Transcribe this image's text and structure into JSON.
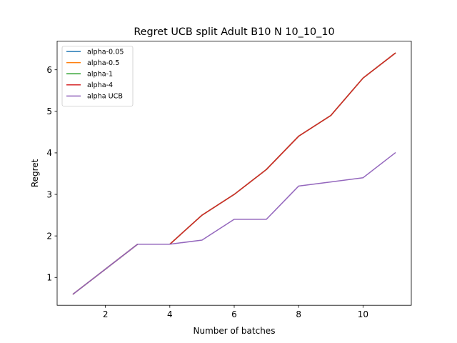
{
  "chart_data": {
    "type": "line",
    "title": "Regret UCB split Adult B10 N 10_10_10",
    "xlabel": "Number of batches",
    "ylabel": "Regret",
    "xlim": [
      0.5,
      11.5
    ],
    "ylim": [
      0.33,
      6.69
    ],
    "xticks": [
      2,
      4,
      6,
      8,
      10
    ],
    "yticks": [
      1,
      2,
      3,
      4,
      5,
      6
    ],
    "grid": false,
    "legend_position": "upper left",
    "x": [
      1,
      2,
      3,
      4,
      5,
      6,
      7,
      8,
      9,
      10,
      11
    ],
    "series": [
      {
        "name": "alpha-0.05",
        "color": "#1f77b4",
        "values": [
          0.6,
          1.2,
          1.8,
          1.8,
          2.5,
          3.0,
          3.6,
          4.4,
          4.9,
          5.8,
          6.4
        ]
      },
      {
        "name": "alpha-0.5",
        "color": "#ff7f0e",
        "values": [
          0.6,
          1.2,
          1.8,
          1.8,
          2.5,
          3.0,
          3.6,
          4.4,
          4.9,
          5.8,
          6.4
        ]
      },
      {
        "name": "alpha-1",
        "color": "#2ca02c",
        "values": [
          0.6,
          1.2,
          1.8,
          1.8,
          2.5,
          3.0,
          3.6,
          4.4,
          4.9,
          5.8,
          6.4
        ]
      },
      {
        "name": "alpha-4",
        "color": "#d62728",
        "values": [
          0.6,
          1.2,
          1.8,
          1.8,
          2.5,
          3.0,
          3.6,
          4.4,
          4.9,
          5.8,
          6.4
        ]
      },
      {
        "name": "alpha UCB",
        "color": "#9467bd",
        "values": [
          0.6,
          1.2,
          1.8,
          1.8,
          1.9,
          2.4,
          2.4,
          3.2,
          3.3,
          3.4,
          4.0
        ]
      }
    ]
  }
}
